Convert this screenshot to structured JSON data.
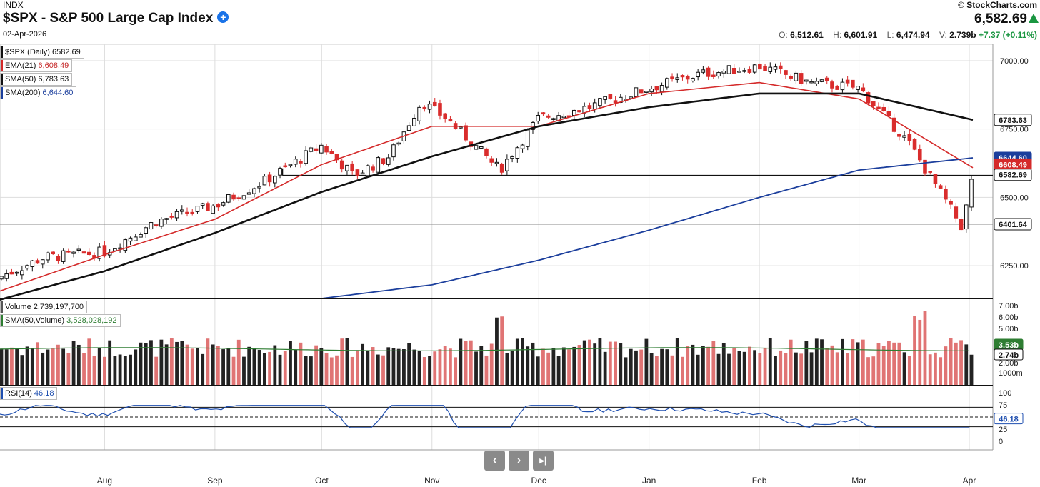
{
  "header": {
    "exchange": "INDX",
    "title": "$SPX - S&P 500 Large Cap Index",
    "date": "02-Apr-2026",
    "brand": "StockCharts.com",
    "last_price": "6,582.69",
    "ohlc": {
      "o_label": "O:",
      "o": "6,512.61",
      "h_label": "H:",
      "h": "6,601.91",
      "l_label": "L:",
      "l": "6,474.94",
      "v_label": "V:",
      "v": "2.739b",
      "change": "+7.37 (+0.11%)"
    }
  },
  "legends": {
    "price": {
      "name": "$SPX (Daily)",
      "value": "6582.69"
    },
    "ema21": {
      "name": "EMA(21)",
      "value": "6,608.49"
    },
    "sma50": {
      "name": "SMA(50)",
      "value": "6,783.63"
    },
    "sma200": {
      "name": "SMA(200)",
      "value": "6,644.60"
    },
    "volume": {
      "name": "Volume",
      "value": "2,739,197,700"
    },
    "vol_sma": {
      "name": "SMA(50,Volume)",
      "value": "3,528,028,192"
    },
    "rsi": {
      "name": "RSI(14)",
      "value": "46.18"
    }
  },
  "colors": {
    "up": "#111111",
    "down": "#d92c2c",
    "ema": "#d42a2a",
    "sma50": "#111111",
    "sma200": "#1b3e9c",
    "vol_up": "#222222",
    "vol_down": "#e07474",
    "vol_sma": "#2e7d32",
    "rsi": "#1f4fb0"
  },
  "chart_data": {
    "type": "line",
    "price_axis": {
      "ticks": [
        6250,
        6500,
        6750,
        7000
      ],
      "labels": [
        "6250.00",
        "6500.00",
        "6750.00",
        "7000.00"
      ],
      "ylim": [
        6130,
        7060
      ]
    },
    "x_labels": [
      "Aug",
      "Sep",
      "Oct",
      "Nov",
      "Dec",
      "Jan",
      "Feb",
      "Mar",
      "Apr"
    ],
    "horizontal_lines": [
      6580,
      6401.64
    ],
    "price_tags": {
      "sma50": "6783.63",
      "sma200": "6644.60",
      "ema21": "6608.49",
      "last": "6582.69",
      "support": "6401.64"
    },
    "series": [
      {
        "name": "SMA(50)",
        "x": [
          "2025-07-01",
          "2025-08-01",
          "2025-09-01",
          "2025-10-01",
          "2025-11-01",
          "2025-12-01",
          "2026-01-01",
          "2026-02-01",
          "2026-03-01",
          "2026-04-02"
        ],
        "values": [
          6120,
          6230,
          6370,
          6520,
          6650,
          6760,
          6830,
          6880,
          6880,
          6783.63
        ]
      },
      {
        "name": "SMA(200)",
        "x": [
          "2025-10-01",
          "2025-11-01",
          "2025-12-01",
          "2026-01-01",
          "2026-02-01",
          "2026-03-01",
          "2026-04-02"
        ],
        "values": [
          6130,
          6180,
          6270,
          6380,
          6500,
          6600,
          6644.6
        ]
      },
      {
        "name": "EMA(21)",
        "x": [
          "2025-07-01",
          "2025-08-01",
          "2025-09-01",
          "2025-10-01",
          "2025-11-01",
          "2025-12-01",
          "2026-01-01",
          "2026-02-01",
          "2026-03-01",
          "2026-04-02"
        ],
        "values": [
          6150,
          6290,
          6420,
          6620,
          6760,
          6760,
          6880,
          6920,
          6860,
          6608.49
        ]
      },
      {
        "name": "$SPX (Daily)",
        "x": [
          "2025-07-01",
          "2025-07-15",
          "2025-08-01",
          "2025-08-15",
          "2025-09-01",
          "2025-09-15",
          "2025-10-01",
          "2025-10-10",
          "2025-10-20",
          "2025-10-29",
          "2025-11-05",
          "2025-11-20",
          "2025-12-01",
          "2025-12-15",
          "2026-01-01",
          "2026-01-15",
          "2026-02-01",
          "2026-02-15",
          "2026-03-01",
          "2026-03-15",
          "2026-03-30",
          "2026-04-02"
        ],
        "values": [
          6200,
          6280,
          6300,
          6410,
          6470,
          6560,
          6690,
          6580,
          6650,
          6850,
          6790,
          6600,
          6790,
          6830,
          6900,
          6950,
          6980,
          6920,
          6900,
          6700,
          6390,
          6582.69
        ]
      }
    ],
    "volume_axis": {
      "labels": [
        "1000m",
        "2.00b",
        "5.00b",
        "6.00b",
        "7.00b"
      ],
      "tags": {
        "sma": "3.53b",
        "last": "2.74b"
      }
    },
    "rsi_axis": {
      "labels": [
        "0",
        "25",
        "75",
        "100"
      ],
      "tag": "46.18",
      "levels": [
        30,
        50,
        70
      ]
    }
  },
  "nav": {
    "prev": "‹",
    "next": "›",
    "end": "▸|"
  }
}
